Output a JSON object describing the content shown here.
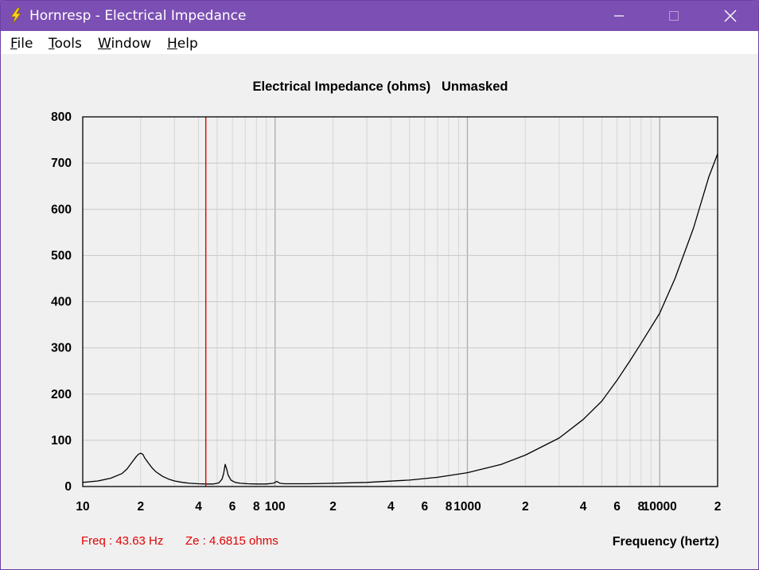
{
  "window": {
    "title": "Hornresp - Electrical Impedance"
  },
  "menu": {
    "file": {
      "accel": "F",
      "rest": "ile"
    },
    "tools": {
      "accel": "T",
      "rest": "ools"
    },
    "window": {
      "accel": "W",
      "rest": "indow"
    },
    "help": {
      "accel": "H",
      "rest": "elp"
    }
  },
  "chart_data": {
    "type": "line",
    "title": "Electrical Impedance (ohms)   Unmasked",
    "xlabel": "Frequency (hertz)",
    "ylabel": "",
    "xscale": "log",
    "xlim": [
      10,
      20000
    ],
    "ylim": [
      0,
      800
    ],
    "yticks": [
      0,
      100,
      200,
      300,
      400,
      500,
      600,
      700,
      800
    ],
    "xtick_labels": [
      {
        "f": 10,
        "label": "10"
      },
      {
        "f": 20,
        "label": "2"
      },
      {
        "f": 40,
        "label": "4"
      },
      {
        "f": 60,
        "label": "6"
      },
      {
        "f": 80,
        "label": "8"
      },
      {
        "f": 100,
        "label": "100"
      },
      {
        "f": 200,
        "label": "2"
      },
      {
        "f": 400,
        "label": "4"
      },
      {
        "f": 600,
        "label": "6"
      },
      {
        "f": 800,
        "label": "8"
      },
      {
        "f": 1000,
        "label": "1000"
      },
      {
        "f": 2000,
        "label": "2"
      },
      {
        "f": 4000,
        "label": "4"
      },
      {
        "f": 6000,
        "label": "6"
      },
      {
        "f": 8000,
        "label": "8"
      },
      {
        "f": 10000,
        "label": "10000"
      },
      {
        "f": 20000,
        "label": "2"
      }
    ],
    "grid": true,
    "series": [
      {
        "color": "#000000",
        "x": [
          10,
          12,
          14,
          16,
          17,
          18,
          19,
          19.5,
          20,
          20.5,
          21,
          22,
          23,
          24,
          26,
          28,
          30,
          33,
          36,
          40,
          44,
          48,
          51,
          53,
          54,
          55,
          56,
          57,
          59,
          62,
          66,
          72,
          80,
          90,
          98,
          102,
          106,
          112,
          120,
          150,
          200,
          300,
          500,
          700,
          1000,
          1500,
          2000,
          3000,
          4000,
          5000,
          6000,
          7000,
          8000,
          10000,
          12000,
          15000,
          18000,
          20000
        ],
        "y": [
          9,
          12,
          18,
          28,
          38,
          52,
          65,
          70,
          72,
          70,
          62,
          50,
          40,
          32,
          22,
          16,
          12,
          9,
          7,
          6,
          5.5,
          5.5,
          8,
          16,
          28,
          48,
          38,
          25,
          14,
          9,
          7,
          6,
          5.5,
          5.5,
          7,
          11,
          7,
          6,
          6,
          6,
          7,
          9,
          14,
          20,
          30,
          48,
          68,
          105,
          145,
          185,
          230,
          272,
          310,
          375,
          450,
          560,
          670,
          720
        ]
      }
    ],
    "cursor": {
      "freq": 43.63,
      "color": "#e00000"
    }
  },
  "readout": {
    "freq": "Freq : 43.63 Hz",
    "ze": "Ze : 4.6815 ohms"
  },
  "colors": {
    "titlebar": "#7b4fb3",
    "readout": "#e00000",
    "grid": "#c8c8c8"
  }
}
